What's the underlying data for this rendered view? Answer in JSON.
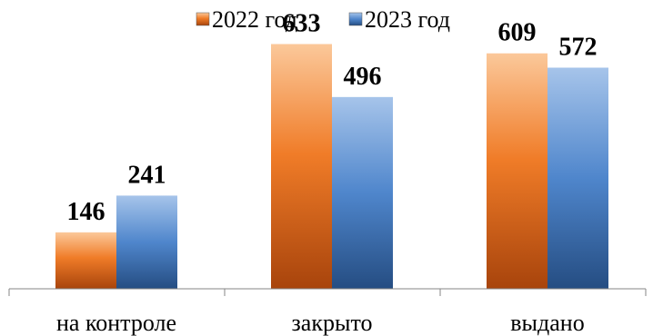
{
  "chart_data": {
    "type": "bar",
    "categories": [
      "на контроле",
      "закрыто",
      "выдано"
    ],
    "series": [
      {
        "name": "2022 год",
        "values": [
          146,
          633,
          609
        ],
        "color": "#f07c28"
      },
      {
        "name": "2023 год",
        "values": [
          241,
          496,
          572
        ],
        "color": "#4f86cc"
      }
    ],
    "ylim": [
      0,
      700
    ],
    "grid": false,
    "legend": "top-center",
    "data_labels": true
  }
}
